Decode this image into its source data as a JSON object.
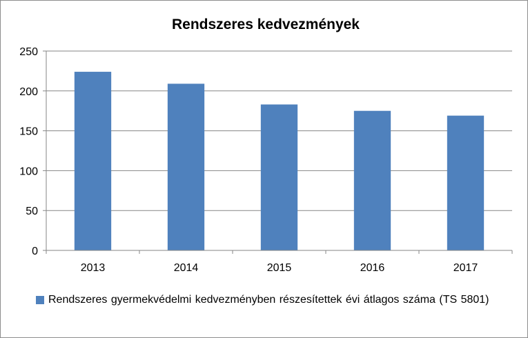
{
  "chart_data": {
    "type": "bar",
    "title": "Rendszeres kedvezmények",
    "categories": [
      "2013",
      "2014",
      "2015",
      "2016",
      "2017"
    ],
    "series": [
      {
        "name": "Rendszeres gyermekvédelmi kedvezményben részesítettek évi átlagos száma (TS 5801)",
        "values": [
          224,
          209,
          183,
          175,
          169
        ],
        "color": "#4f81bd"
      }
    ],
    "yticks": [
      0,
      50,
      100,
      150,
      200,
      250
    ],
    "ylim": [
      0,
      250
    ],
    "xlabel": "",
    "ylabel": "",
    "grid": true,
    "legend": "bottom-left"
  }
}
